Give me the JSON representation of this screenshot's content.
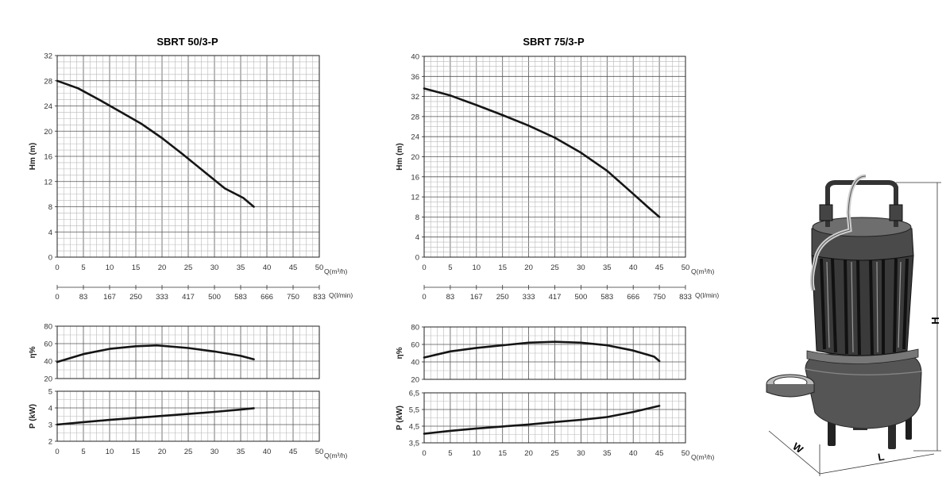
{
  "chart_data": [
    {
      "type": "line",
      "title": "SBRT 50/3-P",
      "panel": "head",
      "ylabel": "Hm (m)",
      "xlabel": "Q(m³/h)",
      "x_ticks": [
        "0",
        "5",
        "10",
        "15",
        "20",
        "25",
        "30",
        "35",
        "40",
        "45",
        "50"
      ],
      "y_ticks": [
        "0",
        "4",
        "8",
        "12",
        "16",
        "20",
        "24",
        "28",
        "32"
      ],
      "xlim": [
        0,
        50
      ],
      "ylim": [
        0,
        32
      ],
      "grid": true,
      "secondary_axis": {
        "label": "Q(l/min)",
        "ticks": [
          "0",
          "83",
          "167",
          "250",
          "333",
          "417",
          "500",
          "583",
          "666",
          "750",
          "833"
        ]
      },
      "series": [
        {
          "x": [
            0,
            4,
            8,
            12,
            16,
            20,
            24,
            28,
            32,
            35.5,
            37.5
          ],
          "values": [
            28,
            26.8,
            25,
            23.1,
            21.2,
            18.9,
            16.3,
            13.6,
            10.9,
            9.4,
            8
          ]
        }
      ]
    },
    {
      "type": "line",
      "panel": "efficiency",
      "ylabel": "η%",
      "x_ticks": [],
      "y_ticks": [
        "20",
        "40",
        "60",
        "80"
      ],
      "xlim": [
        0,
        50
      ],
      "ylim": [
        20,
        80
      ],
      "grid": true,
      "series": [
        {
          "x": [
            0,
            5,
            10,
            15,
            19,
            25,
            30,
            35,
            37.5
          ],
          "values": [
            39,
            48,
            54,
            57,
            58,
            55,
            51,
            46,
            42
          ]
        }
      ]
    },
    {
      "type": "line",
      "panel": "power",
      "ylabel": "P (kW)",
      "xlabel": "Q(m³/h)",
      "x_ticks": [
        "0",
        "5",
        "10",
        "15",
        "20",
        "25",
        "30",
        "35",
        "40",
        "45",
        "50"
      ],
      "y_ticks": [
        "2",
        "3",
        "4",
        "5"
      ],
      "xlim": [
        0,
        50
      ],
      "ylim": [
        2,
        5
      ],
      "grid": true,
      "series": [
        {
          "x": [
            0,
            5,
            10,
            15,
            20,
            25,
            30,
            35,
            37.5
          ],
          "values": [
            3.0,
            3.15,
            3.28,
            3.4,
            3.52,
            3.64,
            3.76,
            3.9,
            3.98
          ]
        }
      ]
    },
    {
      "type": "line",
      "title": "SBRT 75/3-P",
      "panel": "head",
      "ylabel": "Hm (m)",
      "xlabel": "Q(m³/h)",
      "x_ticks": [
        "0",
        "5",
        "10",
        "15",
        "20",
        "25",
        "30",
        "35",
        "40",
        "45",
        "50"
      ],
      "y_ticks": [
        "0",
        "4",
        "8",
        "12",
        "16",
        "20",
        "24",
        "28",
        "32",
        "36",
        "40"
      ],
      "xlim": [
        0,
        50
      ],
      "ylim": [
        0,
        40
      ],
      "grid": true,
      "secondary_axis": {
        "label": "Q(l/min)",
        "ticks": [
          "0",
          "83",
          "167",
          "250",
          "333",
          "417",
          "500",
          "583",
          "666",
          "750",
          "833"
        ]
      },
      "series": [
        {
          "x": [
            0,
            5,
            10,
            15,
            20,
            25,
            30,
            35,
            40,
            43,
            45
          ],
          "values": [
            33.6,
            32.2,
            30.3,
            28.3,
            26.2,
            23.8,
            20.8,
            17.2,
            12.6,
            9.8,
            8
          ]
        }
      ]
    },
    {
      "type": "line",
      "panel": "efficiency",
      "ylabel": "η%",
      "x_ticks": [],
      "y_ticks": [
        "20",
        "40",
        "60",
        "80"
      ],
      "xlim": [
        0,
        50
      ],
      "ylim": [
        20,
        80
      ],
      "grid": true,
      "series": [
        {
          "x": [
            0,
            5,
            10,
            15,
            20,
            25,
            30,
            35,
            40,
            44,
            45
          ],
          "values": [
            45,
            52,
            56,
            59,
            62,
            63,
            62,
            59,
            53,
            46,
            41
          ]
        }
      ]
    },
    {
      "type": "line",
      "panel": "power",
      "ylabel": "P (kW)",
      "xlabel": "Q(m³/h)",
      "x_ticks": [
        "0",
        "5",
        "10",
        "15",
        "20",
        "25",
        "30",
        "35",
        "40",
        "45",
        "50"
      ],
      "y_ticks": [
        "3,5",
        "4,5",
        "5,5",
        "6,5"
      ],
      "xlim": [
        0,
        50
      ],
      "ylim": [
        3.5,
        6.5
      ],
      "grid": true,
      "series": [
        {
          "x": [
            0,
            5,
            10,
            15,
            20,
            25,
            30,
            35,
            40,
            45
          ],
          "values": [
            4.05,
            4.22,
            4.36,
            4.48,
            4.6,
            4.75,
            4.88,
            5.05,
            5.35,
            5.72
          ]
        }
      ]
    }
  ],
  "diagram": {
    "dimension_labels": [
      "H",
      "W",
      "L"
    ]
  },
  "colors": {
    "curve": "#151515",
    "grid_major": "#555555",
    "grid_minor": "#b9b9b9"
  }
}
